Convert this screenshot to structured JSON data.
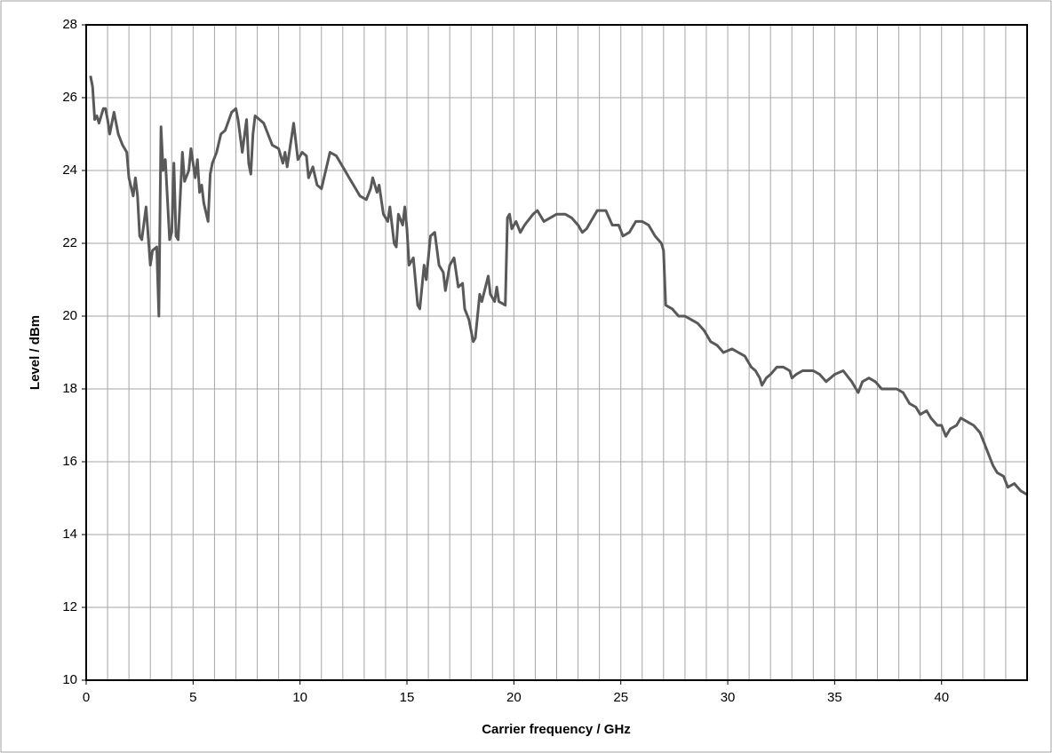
{
  "chart_data": {
    "type": "line",
    "xlabel": "Carrier frequency / GHz",
    "ylabel": "Level / dBm",
    "color": "#595959",
    "xlim": [
      0,
      44
    ],
    "xticks": [
      0,
      5,
      10,
      15,
      20,
      25,
      30,
      35,
      40
    ],
    "xgrid": [
      1,
      2,
      3,
      4,
      5,
      6,
      7,
      8,
      9,
      10,
      11,
      12,
      13,
      14,
      15,
      16,
      17,
      18,
      19,
      20,
      21,
      22,
      23,
      24,
      25,
      26,
      27,
      28,
      29,
      30,
      31,
      32,
      33,
      34,
      35,
      36,
      37,
      38,
      39,
      40,
      41,
      42,
      43
    ],
    "ylim": [
      10,
      28
    ],
    "yticks": [
      10,
      12,
      14,
      16,
      18,
      20,
      22,
      24,
      26,
      28
    ],
    "grid": true,
    "x": [
      0.2,
      0.3,
      0.4,
      0.5,
      0.6,
      0.8,
      0.9,
      1.0,
      1.1,
      1.3,
      1.5,
      1.7,
      1.9,
      2.0,
      2.2,
      2.3,
      2.4,
      2.5,
      2.6,
      2.8,
      3.0,
      3.1,
      3.3,
      3.4,
      3.5,
      3.6,
      3.7,
      3.9,
      4.0,
      4.1,
      4.2,
      4.3,
      4.5,
      4.6,
      4.8,
      4.9,
      5.1,
      5.2,
      5.3,
      5.4,
      5.5,
      5.7,
      5.8,
      5.9,
      6.1,
      6.3,
      6.5,
      6.8,
      7.0,
      7.1,
      7.3,
      7.5,
      7.6,
      7.7,
      7.8,
      7.9,
      8.1,
      8.3,
      8.5,
      8.7,
      9.0,
      9.2,
      9.3,
      9.4,
      9.7,
      9.9,
      10.1,
      10.3,
      10.4,
      10.6,
      10.8,
      11.0,
      11.2,
      11.4,
      11.7,
      12.0,
      12.3,
      12.6,
      12.8,
      13.1,
      13.3,
      13.4,
      13.6,
      13.7,
      13.9,
      14.1,
      14.2,
      14.4,
      14.5,
      14.6,
      14.8,
      14.9,
      15.0,
      15.1,
      15.3,
      15.5,
      15.6,
      15.8,
      15.9,
      16.1,
      16.3,
      16.5,
      16.7,
      16.8,
      17.0,
      17.2,
      17.4,
      17.6,
      17.7,
      17.9,
      18.1,
      18.2,
      18.4,
      18.5,
      18.8,
      18.9,
      19.1,
      19.2,
      19.3,
      19.6,
      19.7,
      19.8,
      19.9,
      20.1,
      20.3,
      20.5,
      20.9,
      21.1,
      21.4,
      21.7,
      22.0,
      22.4,
      22.7,
      23.0,
      23.2,
      23.4,
      23.6,
      23.9,
      24.3,
      24.6,
      24.9,
      25.1,
      25.4,
      25.7,
      26.0,
      26.3,
      26.6,
      26.9,
      27.0,
      27.1,
      27.4,
      27.7,
      28.0,
      28.3,
      28.6,
      28.9,
      29.2,
      29.5,
      29.8,
      30.2,
      30.5,
      30.8,
      31.1,
      31.3,
      31.5,
      31.6,
      31.8,
      32.0,
      32.3,
      32.6,
      32.9,
      33.0,
      33.2,
      33.5,
      34.0,
      34.3,
      34.6,
      35.0,
      35.4,
      35.8,
      36.1,
      36.3,
      36.6,
      36.9,
      37.2,
      37.5,
      37.9,
      38.2,
      38.5,
      38.8,
      39.0,
      39.3,
      39.5,
      39.8,
      40.0,
      40.2,
      40.4,
      40.7,
      40.9,
      41.2,
      41.5,
      41.8,
      42.0,
      42.2,
      42.4,
      42.6,
      42.9,
      43.1,
      43.4,
      43.7,
      44.0
    ],
    "values": [
      26.6,
      26.3,
      25.4,
      25.5,
      25.3,
      25.7,
      25.7,
      25.4,
      25.0,
      25.6,
      25.0,
      24.7,
      24.5,
      23.8,
      23.3,
      23.8,
      23.3,
      22.2,
      22.1,
      23.0,
      21.4,
      21.8,
      21.9,
      20.0,
      25.2,
      24.0,
      24.3,
      22.1,
      22.3,
      24.2,
      22.2,
      22.1,
      24.5,
      23.7,
      24.0,
      24.6,
      23.8,
      24.3,
      23.4,
      23.6,
      23.1,
      22.6,
      23.9,
      24.2,
      24.5,
      25.0,
      25.1,
      25.6,
      25.7,
      25.4,
      24.5,
      25.4,
      24.2,
      23.9,
      25.0,
      25.5,
      25.4,
      25.3,
      25.0,
      24.7,
      24.6,
      24.2,
      24.5,
      24.1,
      25.3,
      24.3,
      24.5,
      24.4,
      23.8,
      24.1,
      23.6,
      23.5,
      24.0,
      24.5,
      24.4,
      24.1,
      23.8,
      23.5,
      23.3,
      23.2,
      23.5,
      23.8,
      23.4,
      23.6,
      22.8,
      22.6,
      23.0,
      22.0,
      21.9,
      22.8,
      22.5,
      23.0,
      22.4,
      21.4,
      21.6,
      20.3,
      20.2,
      21.4,
      21.0,
      22.2,
      22.3,
      21.4,
      21.2,
      20.7,
      21.4,
      21.6,
      20.8,
      20.9,
      20.2,
      19.9,
      19.3,
      19.4,
      20.6,
      20.4,
      21.1,
      20.6,
      20.4,
      20.8,
      20.4,
      20.3,
      22.7,
      22.8,
      22.4,
      22.6,
      22.3,
      22.5,
      22.8,
      22.9,
      22.6,
      22.7,
      22.8,
      22.8,
      22.7,
      22.5,
      22.3,
      22.4,
      22.6,
      22.9,
      22.9,
      22.5,
      22.5,
      22.2,
      22.3,
      22.6,
      22.6,
      22.5,
      22.2,
      22.0,
      21.8,
      20.3,
      20.2,
      20.0,
      20.0,
      19.9,
      19.8,
      19.6,
      19.3,
      19.2,
      19.0,
      19.1,
      19.0,
      18.9,
      18.6,
      18.5,
      18.3,
      18.1,
      18.3,
      18.4,
      18.6,
      18.6,
      18.5,
      18.3,
      18.4,
      18.5,
      18.5,
      18.4,
      18.2,
      18.4,
      18.5,
      18.2,
      17.9,
      18.2,
      18.3,
      18.2,
      18.0,
      18.0,
      18.0,
      17.9,
      17.6,
      17.5,
      17.3,
      17.4,
      17.2,
      17.0,
      17.0,
      16.7,
      16.9,
      17.0,
      17.2,
      17.1,
      17.0,
      16.8,
      16.5,
      16.2,
      15.9,
      15.7,
      15.6,
      15.3,
      15.4,
      15.2,
      15.1
    ]
  }
}
